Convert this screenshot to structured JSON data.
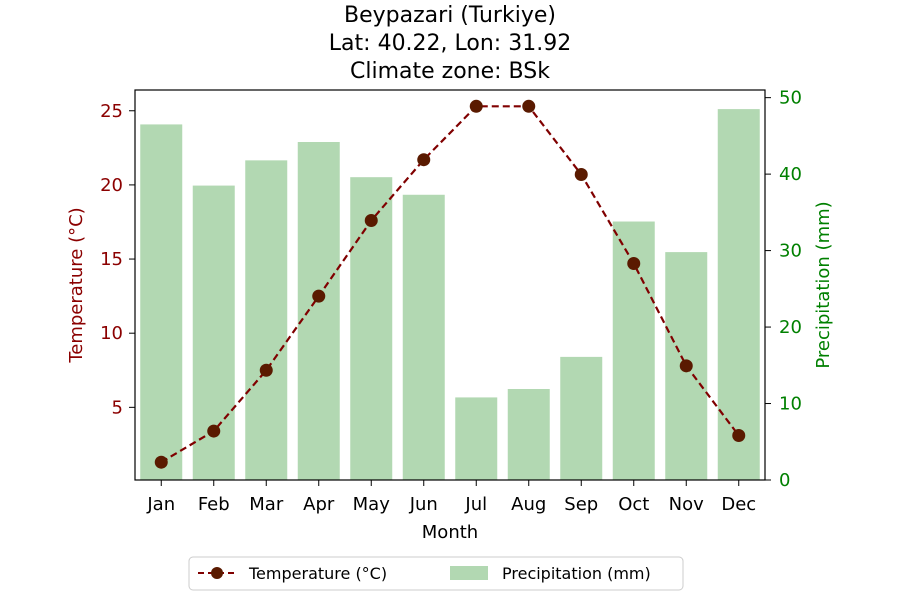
{
  "chart_data": {
    "type": "bar+line",
    "title": [
      "Beypazari (Turkiye)",
      "Lat: 40.22, Lon: 31.92",
      "Climate zone: BSk"
    ],
    "xlabel": "Month",
    "categories": [
      "Jan",
      "Feb",
      "Mar",
      "Apr",
      "May",
      "Jun",
      "Jul",
      "Aug",
      "Sep",
      "Oct",
      "Nov",
      "Dec"
    ],
    "y_left": {
      "label": "Temperature (°C)",
      "lim": [
        0.1,
        26.4
      ],
      "ticks": [
        5,
        10,
        15,
        20,
        25
      ]
    },
    "y_right": {
      "label": "Precipitation (mm)",
      "lim": [
        0,
        51
      ],
      "ticks": [
        0,
        10,
        20,
        30,
        40,
        50
      ]
    },
    "series": [
      {
        "name": "Temperature (°C)",
        "type": "line",
        "axis": "left",
        "color": "#800000",
        "marker_color": "#5a1a00",
        "values": [
          1.3,
          3.4,
          7.5,
          12.5,
          17.6,
          21.7,
          25.3,
          25.3,
          20.7,
          14.7,
          7.8,
          3.1
        ]
      },
      {
        "name": "Precipitation (mm)",
        "type": "bar",
        "axis": "right",
        "color": "#b2d8b2",
        "values": [
          46.5,
          38.5,
          41.8,
          44.2,
          39.6,
          37.3,
          10.8,
          11.9,
          16.1,
          33.8,
          29.8,
          48.5
        ]
      }
    ],
    "legend": {
      "placement": "bottom-center",
      "items": [
        "Temperature (°C)",
        "Precipitation (mm)"
      ]
    },
    "colors": {
      "left_axis": "#8b0000",
      "right_axis": "#008000"
    },
    "grid": false
  }
}
